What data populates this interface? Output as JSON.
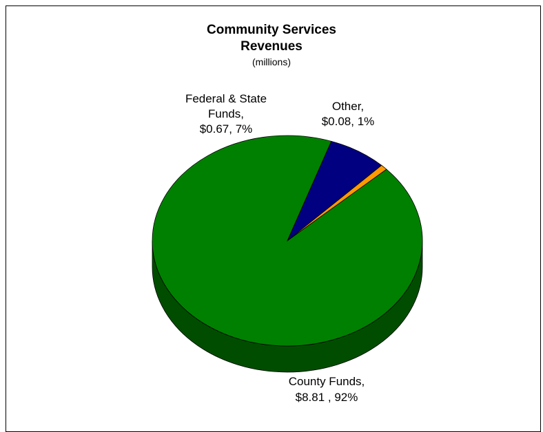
{
  "chart_data": {
    "type": "pie",
    "title": "Community Services",
    "title_line2": "Revenues",
    "subtitle": "(millions)",
    "slices": [
      {
        "name": "Federal & State Funds",
        "value": 0.67,
        "percent": 7,
        "color": "#000080",
        "side": "#00004a",
        "label_lines": [
          "Federal & State",
          "Funds,",
          "$0.67, 7%"
        ]
      },
      {
        "name": "Other",
        "value": 0.08,
        "percent": 1,
        "color": "#ff9900",
        "side": "#a36200",
        "label_lines": [
          "Other,",
          "$0.08, 1%"
        ]
      },
      {
        "name": "County Funds",
        "value": 8.81,
        "percent": 92,
        "color": "#008000",
        "side": "#004d00",
        "label_lines": [
          "County Funds,",
          "$8.81 , 92%"
        ]
      }
    ],
    "legend": "none",
    "style": "3d"
  }
}
